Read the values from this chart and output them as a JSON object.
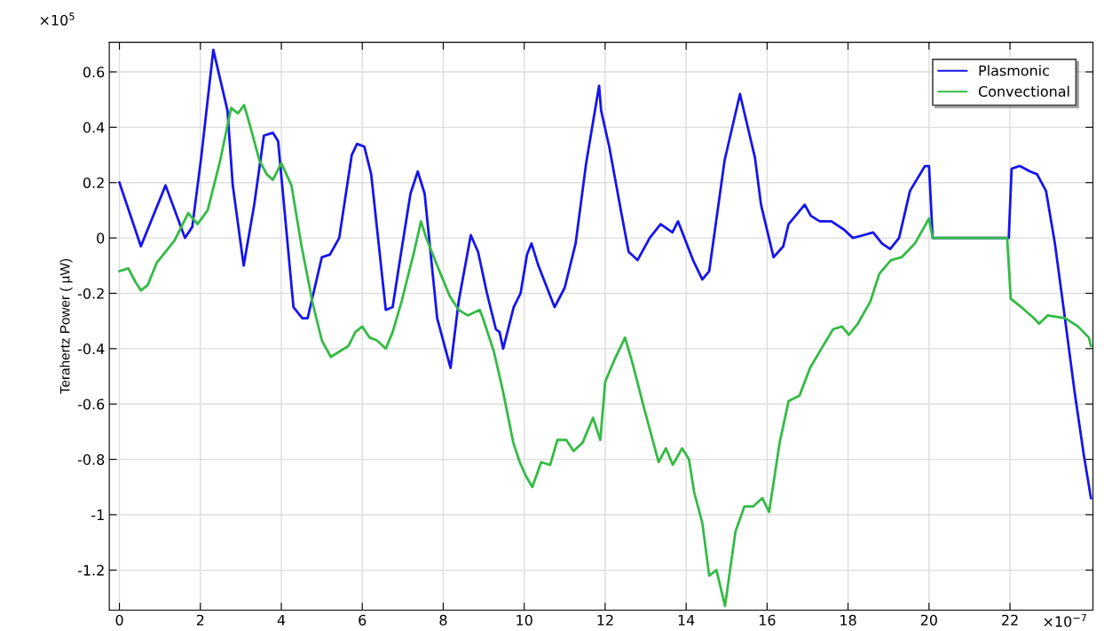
{
  "chart_data": {
    "type": "line",
    "ylabel": "Terahertz Power ( µW)",
    "annotations": [
      "×10$^{5}$",
      "×10$^{−7}$"
    ],
    "xlim": [
      -0.25,
      24.05
    ],
    "ylim": [
      -1.345,
      0.707
    ],
    "xticks": [
      0,
      2,
      4,
      6,
      8,
      10,
      12,
      14,
      16,
      18,
      20,
      22
    ],
    "yticks": [
      -1.2,
      -1,
      -0.8,
      -0.6,
      -0.4,
      -0.2,
      0,
      0.2,
      0.4,
      0.6
    ],
    "grid": true,
    "legend": "top right",
    "line_style": "solid",
    "series": [
      {
        "name": "Plasmonic",
        "color": "#1414f0",
        "x": [
          0,
          0.53,
          1.14,
          1.62,
          1.8,
          2.02,
          2.32,
          2.67,
          2.8,
          3.07,
          3.33,
          3.57,
          3.79,
          3.92,
          4.3,
          4.52,
          4.65,
          5.0,
          5.2,
          5.43,
          5.74,
          5.87,
          6.05,
          6.22,
          6.58,
          6.75,
          6.93,
          7.19,
          7.37,
          7.54,
          7.85,
          8.18,
          8.38,
          8.68,
          8.86,
          9.08,
          9.3,
          9.39,
          9.48,
          9.74,
          9.91,
          10.07,
          10.18,
          10.35,
          10.75,
          11.0,
          11.27,
          11.53,
          11.85,
          11.9,
          12.1,
          12.4,
          12.58,
          12.8,
          13.1,
          13.37,
          13.66,
          13.8,
          14.17,
          14.4,
          14.57,
          14.95,
          15.33,
          15.7,
          15.85,
          16.16,
          16.4,
          16.53,
          16.93,
          17.08,
          17.3,
          17.59,
          17.9,
          18.12,
          18.38,
          18.62,
          18.84,
          19.04,
          19.26,
          19.53,
          19.9,
          20.0,
          20.09,
          21.97,
          22.04,
          22.24,
          22.5,
          22.67,
          22.89,
          23.11,
          23.33,
          23.6,
          23.82,
          24.0
        ],
        "values": [
          0.2,
          -0.03,
          0.19,
          0.0,
          0.04,
          0.29,
          0.68,
          0.46,
          0.19,
          -0.1,
          0.12,
          0.37,
          0.38,
          0.35,
          -0.25,
          -0.29,
          -0.29,
          -0.07,
          -0.06,
          0.0,
          0.3,
          0.34,
          0.33,
          0.23,
          -0.26,
          -0.25,
          -0.08,
          0.16,
          0.24,
          0.16,
          -0.29,
          -0.47,
          -0.23,
          0.01,
          -0.05,
          -0.2,
          -0.33,
          -0.34,
          -0.4,
          -0.25,
          -0.2,
          -0.06,
          -0.02,
          -0.1,
          -0.25,
          -0.18,
          -0.02,
          0.27,
          0.55,
          0.46,
          0.33,
          0.09,
          -0.05,
          -0.08,
          0.0,
          0.05,
          0.02,
          0.06,
          -0.08,
          -0.15,
          -0.12,
          0.28,
          0.52,
          0.29,
          0.12,
          -0.07,
          -0.03,
          0.05,
          0.12,
          0.08,
          0.06,
          0.06,
          0.03,
          0.0,
          0.01,
          0.02,
          -0.02,
          -0.04,
          0.0,
          0.17,
          0.26,
          0.26,
          0.0,
          0.0,
          0.25,
          0.26,
          0.24,
          0.23,
          0.17,
          -0.02,
          -0.26,
          -0.56,
          -0.78,
          -0.94
        ]
      },
      {
        "name": "Convectional",
        "color": "#33bb44",
        "x": [
          0,
          0.22,
          0.4,
          0.53,
          0.7,
          0.92,
          1.36,
          1.7,
          1.93,
          2.18,
          2.49,
          2.76,
          2.93,
          3.08,
          3.2,
          3.46,
          3.64,
          3.79,
          4.0,
          4.25,
          4.5,
          4.78,
          5.0,
          5.22,
          5.44,
          5.66,
          5.83,
          6.0,
          6.18,
          6.36,
          6.58,
          6.75,
          6.97,
          7.28,
          7.45,
          7.58,
          7.85,
          8.16,
          8.38,
          8.6,
          8.9,
          8.98,
          9.25,
          9.47,
          9.73,
          9.89,
          10.04,
          10.2,
          10.42,
          10.64,
          10.82,
          11.04,
          11.22,
          11.44,
          11.7,
          11.88,
          12.0,
          12.23,
          12.49,
          12.67,
          12.97,
          13.32,
          13.5,
          13.67,
          13.9,
          14.07,
          14.2,
          14.4,
          14.57,
          14.75,
          14.96,
          15.22,
          15.44,
          15.66,
          15.88,
          16.05,
          16.31,
          16.53,
          16.8,
          17.06,
          17.34,
          17.63,
          17.85,
          18.02,
          18.24,
          18.55,
          18.77,
          19.06,
          19.32,
          19.65,
          20.0,
          20.09,
          21.93,
          22.02,
          22.28,
          22.59,
          22.72,
          22.93,
          23.37,
          23.68,
          23.95,
          24.0
        ],
        "values": [
          -0.12,
          -0.11,
          -0.16,
          -0.19,
          -0.17,
          -0.09,
          -0.01,
          0.09,
          0.05,
          0.1,
          0.28,
          0.47,
          0.45,
          0.48,
          0.42,
          0.28,
          0.23,
          0.21,
          0.27,
          0.19,
          -0.03,
          -0.24,
          -0.37,
          -0.43,
          -0.41,
          -0.39,
          -0.34,
          -0.32,
          -0.36,
          -0.37,
          -0.4,
          -0.34,
          -0.23,
          -0.05,
          0.06,
          0.0,
          -0.1,
          -0.21,
          -0.26,
          -0.28,
          -0.26,
          -0.29,
          -0.41,
          -0.55,
          -0.74,
          -0.81,
          -0.86,
          -0.9,
          -0.81,
          -0.82,
          -0.73,
          -0.73,
          -0.77,
          -0.74,
          -0.65,
          -0.73,
          -0.52,
          -0.44,
          -0.36,
          -0.45,
          -0.62,
          -0.81,
          -0.76,
          -0.82,
          -0.76,
          -0.8,
          -0.92,
          -1.03,
          -1.22,
          -1.2,
          -1.33,
          -1.06,
          -0.97,
          -0.97,
          -0.94,
          -0.99,
          -0.74,
          -0.59,
          -0.57,
          -0.47,
          -0.4,
          -0.33,
          -0.32,
          -0.35,
          -0.31,
          -0.23,
          -0.13,
          -0.08,
          -0.07,
          -0.02,
          0.07,
          0.0,
          0.0,
          -0.22,
          -0.25,
          -0.29,
          -0.31,
          -0.28,
          -0.29,
          -0.32,
          -0.36,
          -0.39
        ]
      }
    ]
  }
}
